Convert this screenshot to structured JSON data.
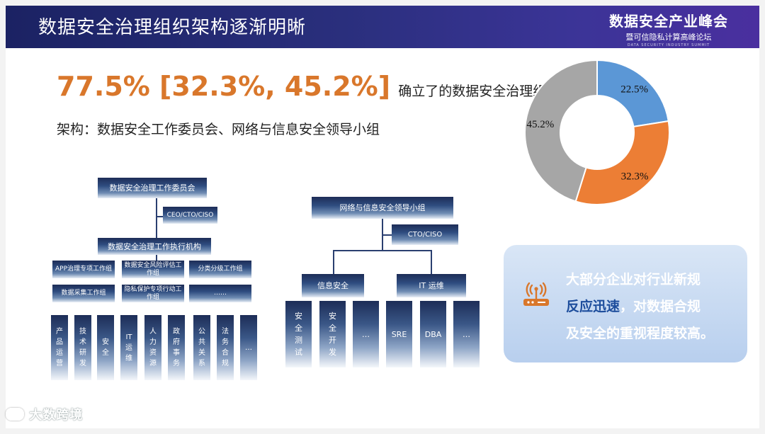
{
  "header": {
    "title": "数据安全治理组织架构逐渐明晰",
    "summit_name": "数据安全产业峰会",
    "summit_sub": "暨可信隐私计算高峰论坛",
    "summit_en": "DATA SECURITY INDUSTRY SUMMIT"
  },
  "headline": {
    "stat": "77.5% [32.3%, 45.2%]",
    "text": "确立了的数据安全治理组织",
    "subline": "架构：数据安全工作委员会、网络与信息安全领导小组"
  },
  "chart_data": {
    "type": "pie",
    "donut": true,
    "slices": [
      {
        "label": "22.5%",
        "value": 22.5,
        "color": "#5b97d6"
      },
      {
        "label": "32.3%",
        "value": 32.3,
        "color": "#ec7e35"
      },
      {
        "label": "45.2%",
        "value": 45.2,
        "color": "#a6a6a6"
      }
    ]
  },
  "org_left": {
    "root": "数据安全治理工作委员会",
    "side": "CEO/CTO/CISO",
    "exec": "数据安全治理工作执行机构",
    "groups": [
      "APP治理专项工作组",
      "数据安全风险评估工作组",
      "分类分级工作组",
      "数据采集工作组",
      "隐私保护专项行动工作组",
      "……"
    ],
    "depts": [
      "产品运营",
      "技术研发",
      "安全",
      "IT运维",
      "人力资源",
      "政府事务",
      "公共关系",
      "法务合规",
      "…"
    ]
  },
  "org_right": {
    "root": "网络与信息安全领导小组",
    "side": "CTO/CISO",
    "branches": [
      "信息安全",
      "IT 运维"
    ],
    "depts": [
      "安全测试",
      "安全开发",
      "…",
      "SRE",
      "DBA",
      "…"
    ]
  },
  "callout": {
    "line1": "大部分企业对行业新规",
    "line2_highlight": "反应迅速",
    "line2_rest": "，对数据合规",
    "line3": "及安全的重视程度较高。",
    "icon": "router-icon"
  },
  "watermark": "大数跨境"
}
